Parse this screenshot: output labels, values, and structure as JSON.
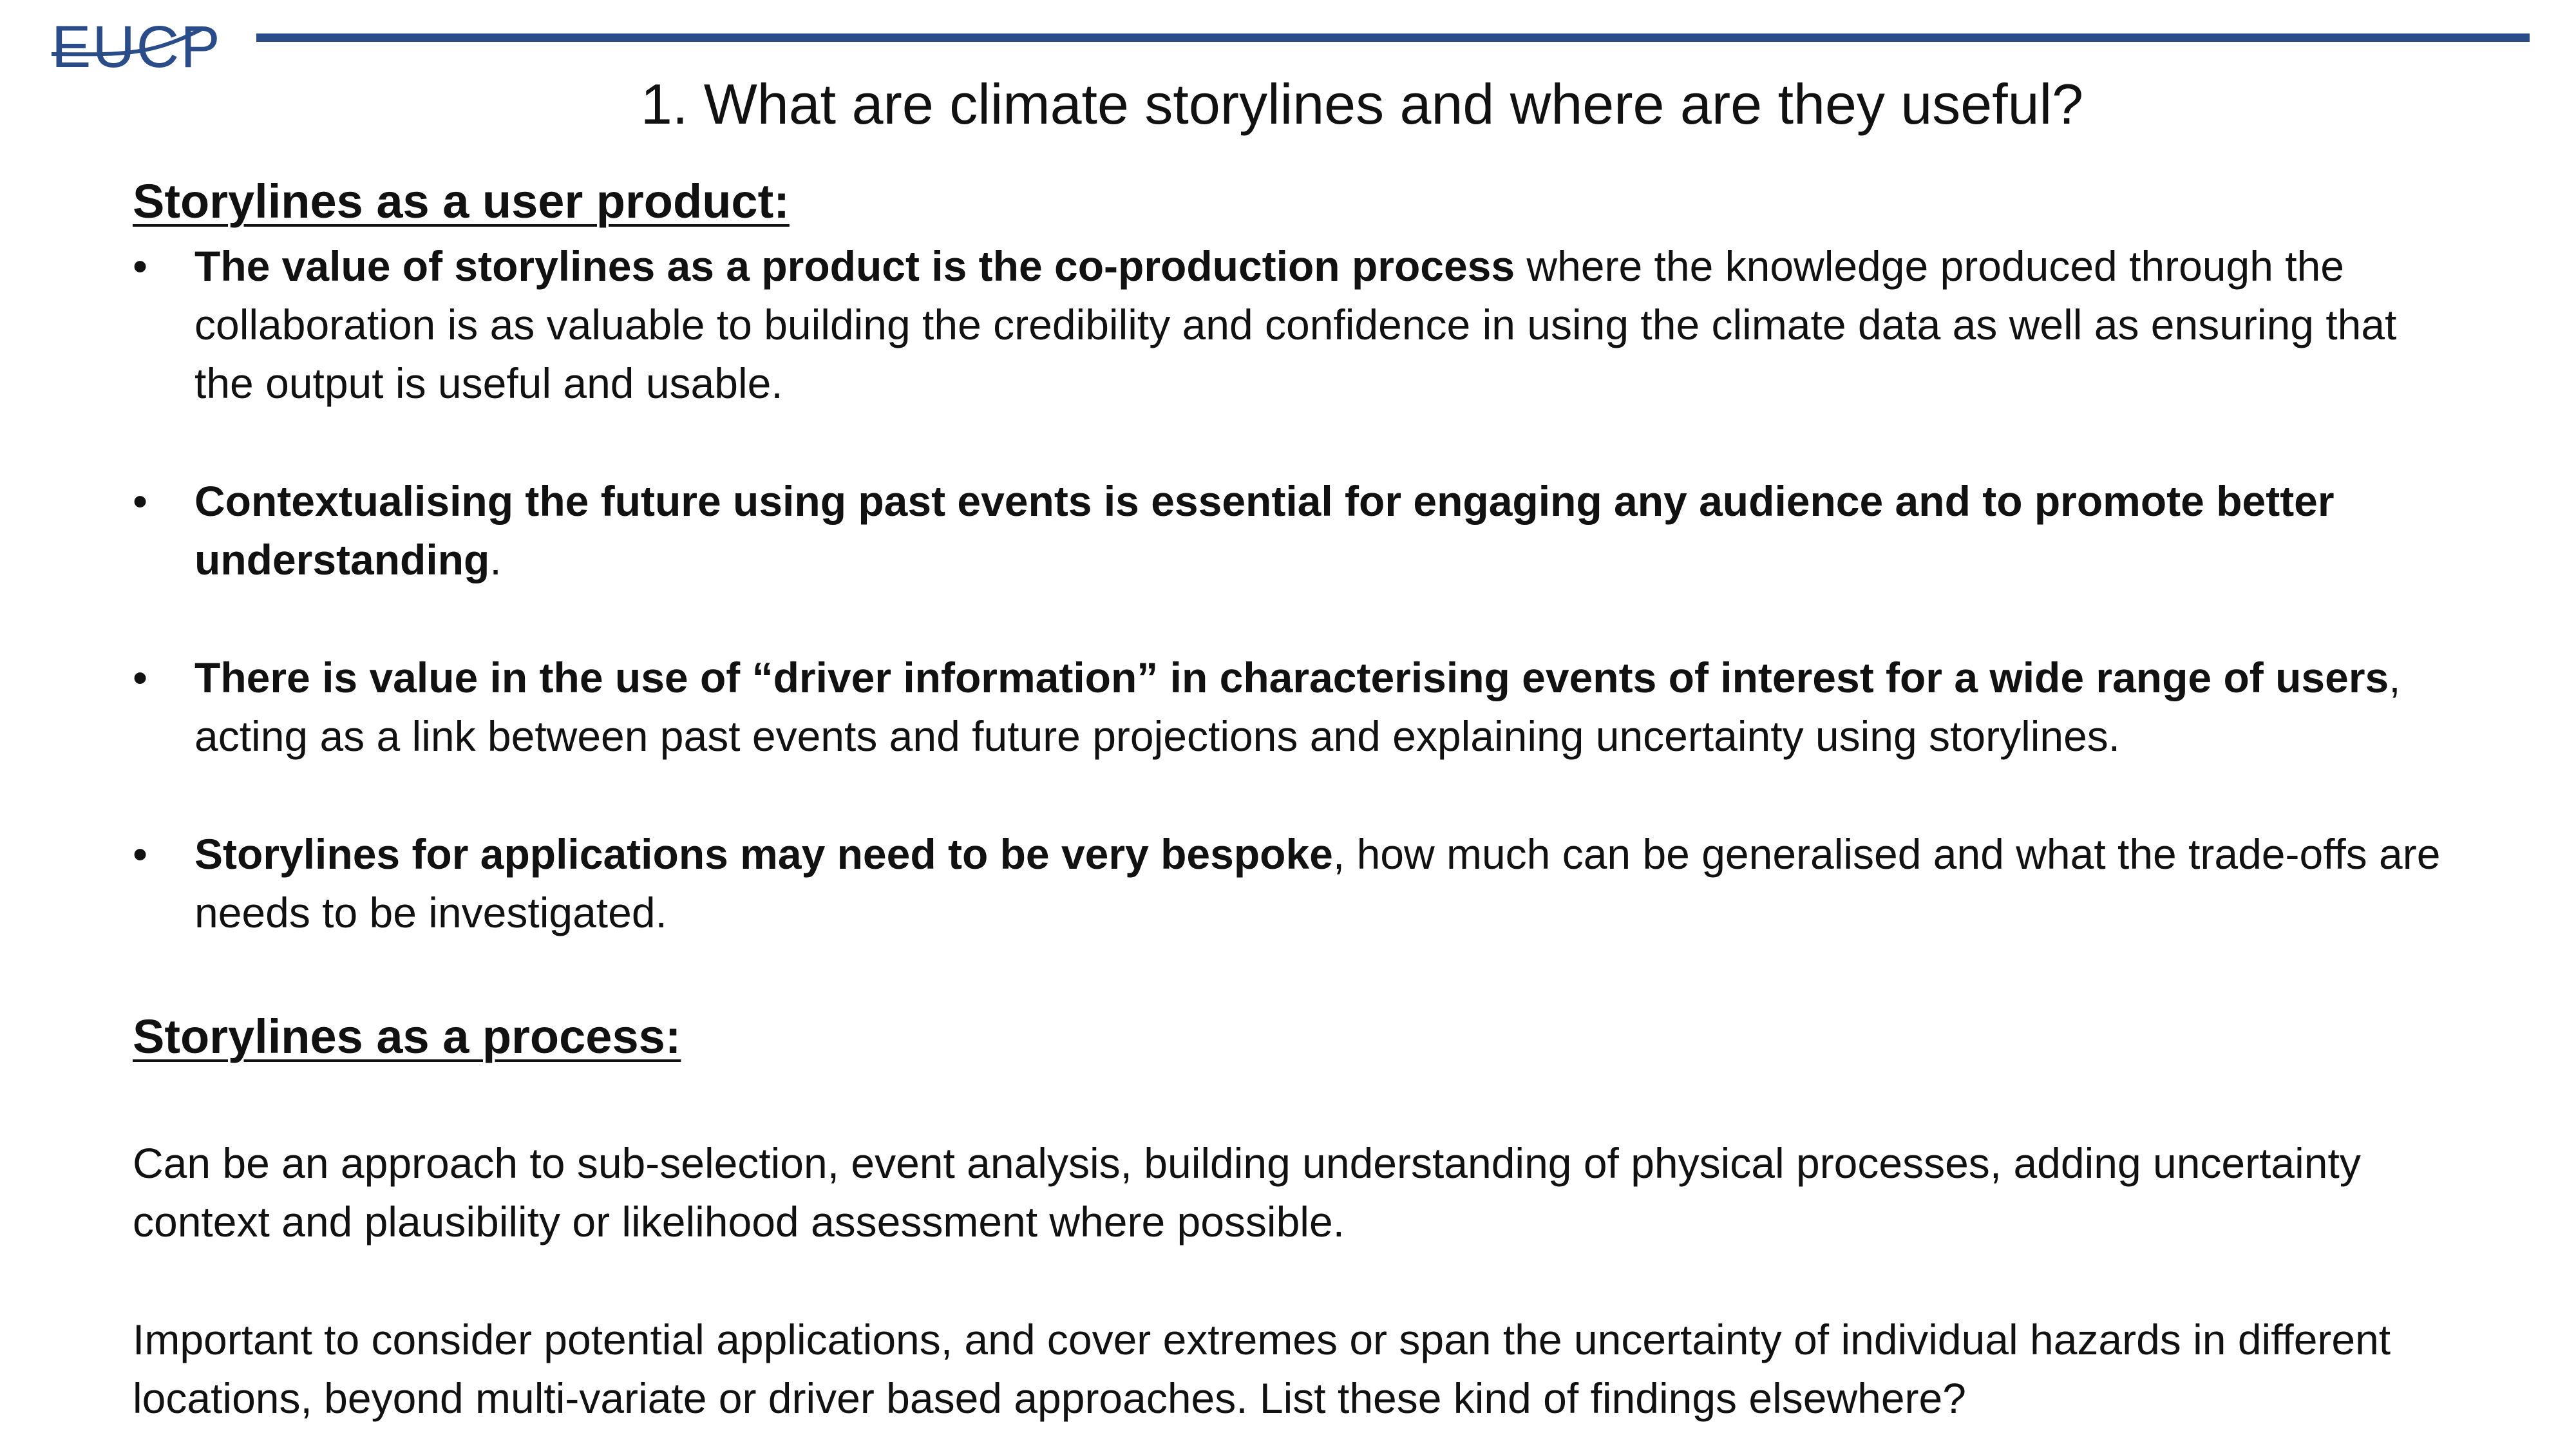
{
  "logo": {
    "text": "EUCP",
    "color": "#2a4d8a"
  },
  "colors": {
    "accent_rule": "#2a4d8a",
    "text": "#111111",
    "background": "#ffffff"
  },
  "title": "1. What are climate storylines and where are they useful?",
  "section1": {
    "heading": "Storylines as a user product:",
    "bullets": [
      {
        "bold": "The value of storylines as a product is the co-production process",
        "rest": " where the knowledge produced through the collaboration is as valuable to building the credibility and confidence in using the climate data as well as ensuring that the output is useful and usable."
      },
      {
        "bold": "Contextualising the future using past events is essential for engaging any audience and to promote better understanding",
        "rest": "."
      },
      {
        "bold": "There is value in the use of “driver information” in characterising events of interest for a wide range of users",
        "rest": ", acting as a link between past events and future projections and explaining uncertainty using storylines."
      },
      {
        "bold": "Storylines for applications may need to be very bespoke",
        "rest": ", how much can be generalised and what the trade-offs are needs to be investigated."
      }
    ]
  },
  "section2": {
    "heading": "Storylines as a process:",
    "paragraphs": [
      "Can be an approach to sub-selection, event analysis, building understanding of physical processes, adding uncertainty context and plausibility or likelihood assessment where possible.",
      "Important to consider potential applications, and cover extremes or span the uncertainty of individual hazards in different locations, beyond multi-variate or driver based approaches. List these kind of findings elsewhere?"
    ]
  },
  "bullet_glyph": "•"
}
